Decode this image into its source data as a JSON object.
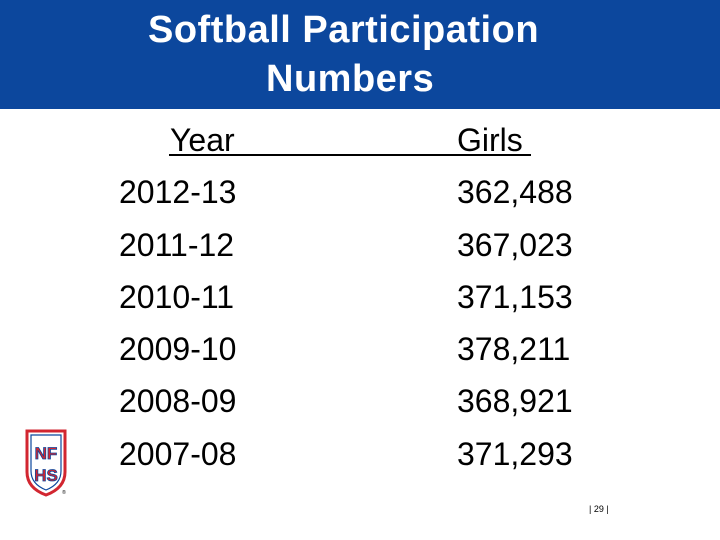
{
  "title": {
    "line1": "Softball Participation",
    "line2": "Numbers"
  },
  "table": {
    "headers": {
      "year": "Year",
      "girls": "Girls"
    },
    "rows": [
      {
        "year": "2012-13",
        "girls": "362,488"
      },
      {
        "year": "2011-12",
        "girls": "367,023"
      },
      {
        "year": "2010-11",
        "girls": "371,153"
      },
      {
        "year": "2009-10",
        "girls": "378,211"
      },
      {
        "year": "2008-09",
        "girls": "368,921"
      },
      {
        "year": "2007-08",
        "girls": "371,293"
      }
    ]
  },
  "logo": {
    "text_top": "NF",
    "text_bottom": "HS",
    "mark": "®"
  },
  "page_number": "| 29 |",
  "colors": {
    "title_bar": "#0c479d",
    "logo_red": "#d22630",
    "logo_blue": "#0c479d"
  }
}
